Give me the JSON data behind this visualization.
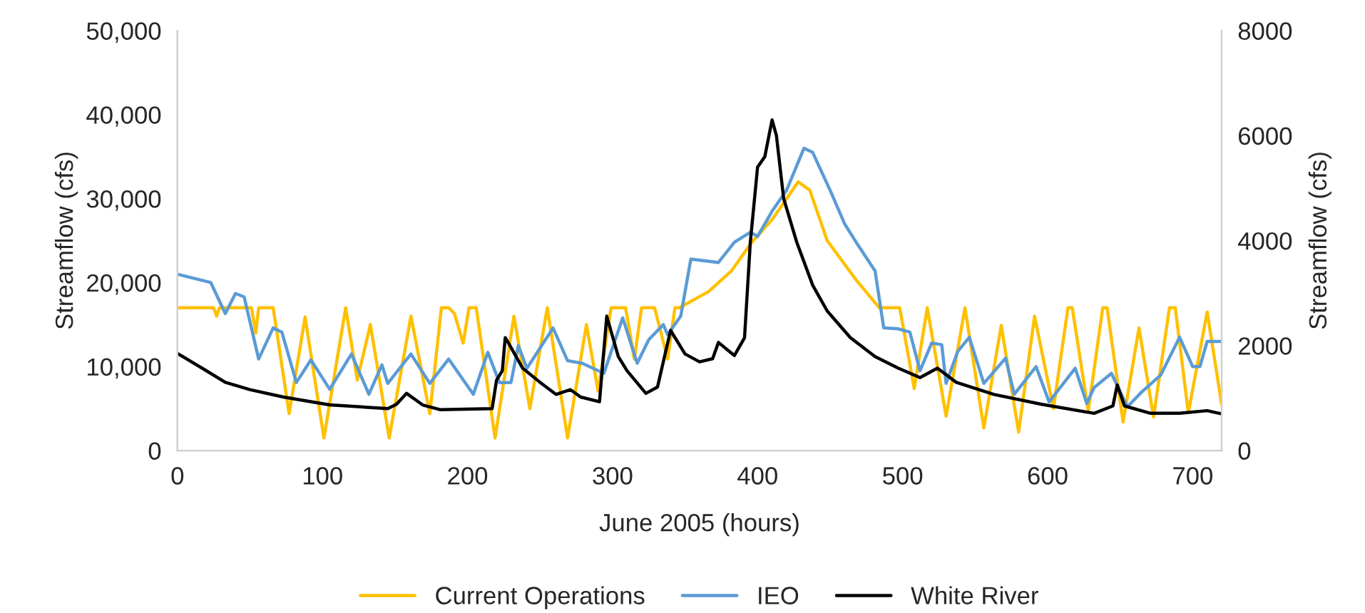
{
  "chart_data": {
    "type": "line",
    "xlabel": "June 2005 (hours)",
    "ylabel": "Streamflow (cfs)",
    "y2label": "Streamflow (cfs)",
    "xlim": [
      0,
      720
    ],
    "xticks": [
      0,
      100,
      200,
      300,
      400,
      500,
      600,
      700
    ],
    "ylim": [
      0,
      50000
    ],
    "yticks": [
      {
        "value": 0,
        "label": "0"
      },
      {
        "value": 10000,
        "label": "10,000"
      },
      {
        "value": 20000,
        "label": "20,000"
      },
      {
        "value": 30000,
        "label": "30,000"
      },
      {
        "value": 40000,
        "label": "40,000"
      },
      {
        "value": 50000,
        "label": "50,000"
      }
    ],
    "y2lim": [
      0,
      8000
    ],
    "y2ticks": [
      0,
      2000,
      4000,
      6000,
      8000
    ],
    "grid": false,
    "legend": "bottom",
    "marker": "none",
    "line_style": "solid",
    "series": [
      {
        "name": "Current Operations",
        "color": "#ffc000",
        "x": [
          0,
          25,
          27,
          29,
          51,
          54,
          56,
          66,
          77,
          88,
          101,
          116,
          124,
          133,
          146,
          161,
          174,
          182,
          187,
          191,
          197,
          201,
          206,
          219,
          232,
          243,
          255,
          269,
          282,
          290,
          299,
          309,
          315,
          320,
          329,
          338,
          343,
          346,
          366,
          382,
          396,
          410,
          420,
          428,
          436,
          448,
          468,
          484,
          498,
          508,
          517,
          530,
          543,
          556,
          568,
          580,
          591,
          604,
          614,
          617,
          628,
          638,
          641,
          652,
          663,
          673,
          684,
          688,
          697,
          710,
          720
        ],
        "values": [
          17000,
          17000,
          16000,
          17000,
          17000,
          14000,
          17000,
          17000,
          4400,
          15900,
          1500,
          17000,
          8400,
          15000,
          1500,
          16000,
          4400,
          17000,
          17000,
          16300,
          12800,
          17000,
          17000,
          1500,
          16000,
          5000,
          17000,
          1500,
          15000,
          7100,
          17000,
          17000,
          10900,
          17000,
          17000,
          10900,
          17000,
          17000,
          18900,
          21400,
          24800,
          27500,
          30000,
          32000,
          31000,
          25000,
          20300,
          17000,
          17000,
          7400,
          17000,
          4100,
          17000,
          2700,
          14900,
          2200,
          16000,
          5000,
          17000,
          17000,
          4700,
          17000,
          17000,
          3400,
          14600,
          4000,
          17000,
          17000,
          4500,
          16500,
          5500
        ]
      },
      {
        "name": "IEO",
        "color": "#5b9bd5",
        "x": [
          0,
          23,
          33,
          40,
          46,
          56,
          66,
          72,
          82,
          92,
          105,
          120,
          132,
          141,
          145,
          161,
          174,
          187,
          204,
          214,
          222,
          230,
          235,
          241,
          259,
          269,
          279,
          294,
          307,
          317,
          325,
          335,
          338,
          347,
          354,
          373,
          384,
          395,
          400,
          410,
          420,
          432,
          438,
          450,
          460,
          468,
          481,
          487,
          497,
          505,
          512,
          520,
          527,
          530,
          538,
          546,
          556,
          571,
          577,
          592,
          601,
          619,
          627,
          632,
          644,
          655,
          665,
          678,
          691,
          700,
          705,
          710,
          720
        ],
        "values": [
          21000,
          20000,
          16300,
          18700,
          18300,
          10900,
          14600,
          14100,
          8100,
          10800,
          7300,
          11500,
          6700,
          10200,
          8000,
          11500,
          8000,
          10900,
          6700,
          11700,
          8100,
          8100,
          12500,
          9800,
          14600,
          10700,
          10400,
          9200,
          15800,
          10400,
          13200,
          15000,
          13800,
          16000,
          22800,
          22400,
          24800,
          26000,
          25500,
          28500,
          31000,
          36000,
          35500,
          31000,
          27000,
          24800,
          21400,
          14600,
          14500,
          14100,
          9500,
          12800,
          12600,
          8000,
          11800,
          13500,
          8000,
          11000,
          6700,
          10000,
          5800,
          9800,
          5600,
          7500,
          9200,
          5200,
          7000,
          9000,
          13500,
          10000,
          10000,
          13000,
          13000
        ]
      },
      {
        "name": "White River",
        "color": "#000000",
        "axis": "y2",
        "x": [
          0,
          17,
          33,
          50,
          73,
          105,
          145,
          151,
          158,
          169,
          181,
          217,
          220,
          224,
          226,
          228,
          238,
          250,
          261,
          271,
          278,
          291,
          296,
          304,
          310,
          323,
          331,
          340,
          350,
          360,
          369,
          373,
          384,
          391,
          395,
          400,
          405,
          410,
          413,
          418,
          427,
          438,
          448,
          464,
          481,
          497,
          512,
          524,
          537,
          563,
          596,
          632,
          645,
          648,
          653,
          671,
          691,
          710,
          720
        ],
        "values": [
          1850,
          1570,
          1300,
          1160,
          1020,
          870,
          800,
          880,
          1090,
          870,
          780,
          800,
          1340,
          1520,
          2150,
          2060,
          1570,
          1300,
          1070,
          1160,
          1020,
          930,
          2560,
          1790,
          1520,
          1090,
          1210,
          2290,
          1840,
          1690,
          1750,
          2060,
          1810,
          2150,
          3970,
          5400,
          5600,
          6300,
          6000,
          4800,
          3970,
          3150,
          2660,
          2150,
          1790,
          1570,
          1390,
          1570,
          1300,
          1070,
          880,
          710,
          850,
          1250,
          850,
          710,
          710,
          760,
          700
        ]
      }
    ]
  }
}
